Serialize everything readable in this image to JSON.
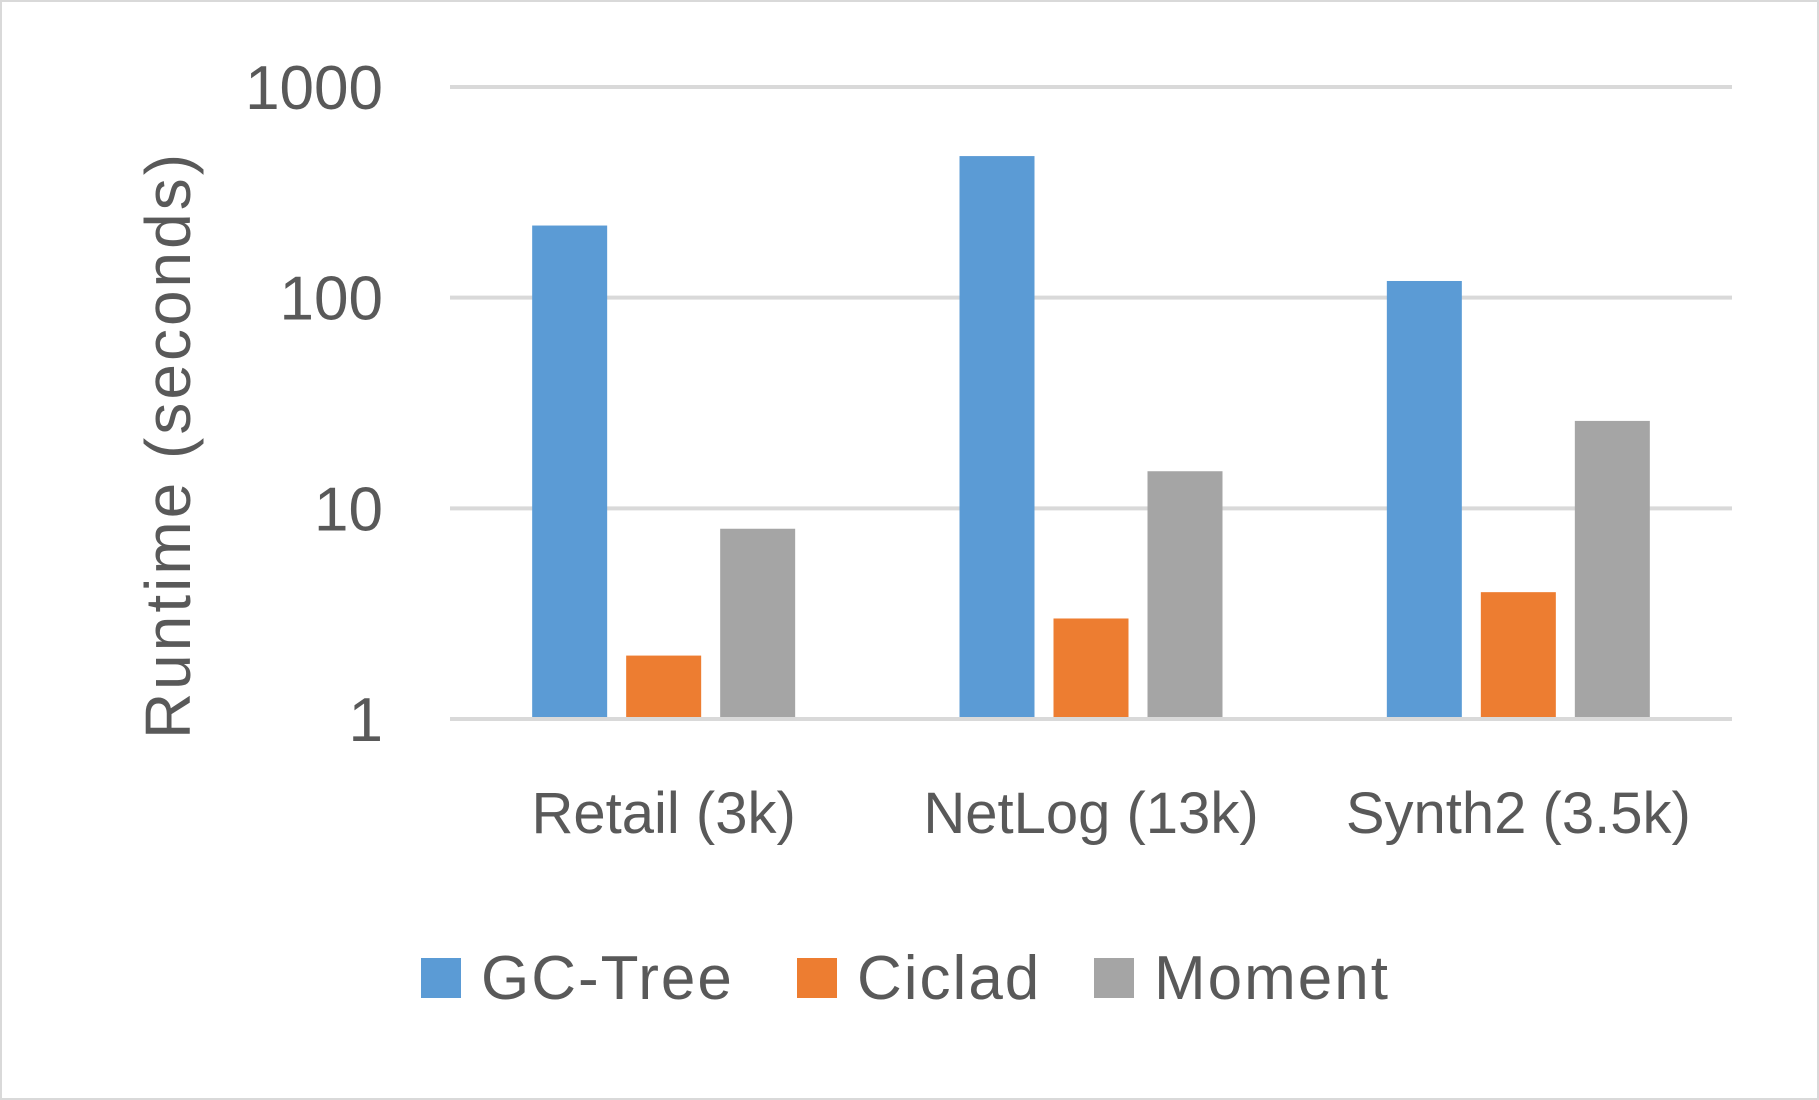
{
  "chart_data": {
    "type": "bar",
    "title": "",
    "xlabel": "",
    "ylabel": "Runtime (seconds)",
    "yscale": "log",
    "ylim": [
      1,
      1000
    ],
    "yticks": [
      1,
      10,
      100,
      1000
    ],
    "ytick_labels": [
      "1",
      "10",
      "100",
      "1000"
    ],
    "grid": true,
    "legend_position": "bottom",
    "categories": [
      "Retail (3k)",
      "NetLog (13k)",
      "Synth2 (3.5k)"
    ],
    "series": [
      {
        "name": "GC-Tree",
        "color": "#5b9bd5",
        "values": [
          220,
          470,
          120
        ]
      },
      {
        "name": "Ciclad",
        "color": "#ed7d31",
        "values": [
          2,
          3,
          4
        ]
      },
      {
        "name": "Moment",
        "color": "#a5a5a5",
        "values": [
          8,
          15,
          26
        ]
      }
    ]
  }
}
